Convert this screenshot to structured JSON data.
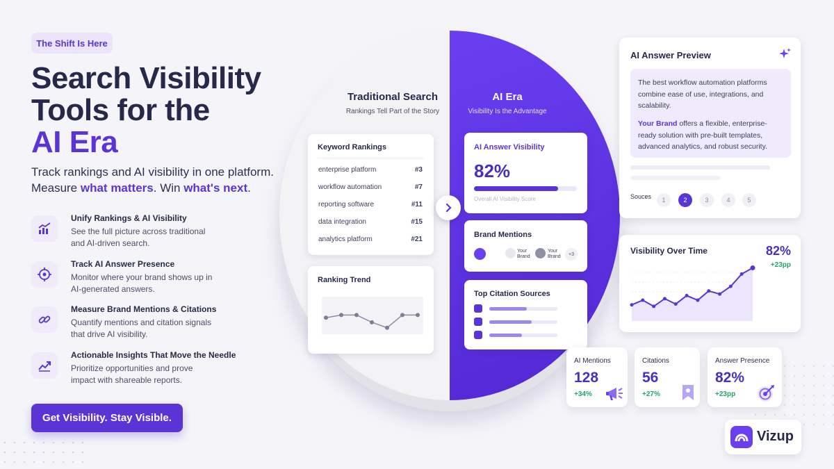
{
  "badge": "The Shift Is Here",
  "headline": {
    "line1": "Search Visibility",
    "line2": "Tools for the",
    "line3": "AI Era"
  },
  "subhead": {
    "line1": "Track rankings and AI visibility in one platform.",
    "pre": "Measure ",
    "em1": "what matters",
    "mid": ". Win ",
    "em2": "what's next",
    "post": "."
  },
  "features": [
    {
      "title": "Unify Rankings & AI Visibility",
      "desc": "See the full picture across traditional and AI-driven search.",
      "icon": "bar-chart-icon"
    },
    {
      "title": "Track AI Answer Presence",
      "desc": "Monitor where your brand shows up in AI-generated answers.",
      "icon": "target-icon"
    },
    {
      "title": "Measure Brand Mentions & Citations",
      "desc": "Quantify mentions and citation signals that drive AI visibility.",
      "icon": "link-icon"
    },
    {
      "title": "Actionable Insights That Move the Needle",
      "desc": "Prioritize opportunities and prove impact with shareable reports.",
      "icon": "trend-up-icon"
    }
  ],
  "cta": "Get Visibility. Stay Visible.",
  "traditional": {
    "title": "Traditional Search",
    "subtitle": "Rankings Tell Part of the Story",
    "keyword_card_title": "Keyword Rankings",
    "keywords": [
      {
        "term": "enterprise platform",
        "rank": "#3"
      },
      {
        "term": "workflow automation",
        "rank": "#7"
      },
      {
        "term": "reporting software",
        "rank": "#11"
      },
      {
        "term": "data integration",
        "rank": "#15"
      },
      {
        "term": "analytics platform",
        "rank": "#21"
      }
    ],
    "trend_title": "Ranking Trend",
    "trend_points": [
      4,
      3.4,
      3.4,
      5,
      6.2,
      3.4,
      3.4
    ]
  },
  "ai": {
    "title": "AI Era",
    "subtitle": "Visibility Is the Advantage",
    "visibility_title": "AI Answer Visibility",
    "visibility_value": "82%",
    "visibility_fraction": 0.82,
    "visibility_label": "Overall AI Visibility Score",
    "mentions_title": "Brand Mentions",
    "mention_labels": [
      "Your Brand",
      "Your Brand"
    ],
    "mention_more": "+3",
    "citations_title": "Top Citation Sources",
    "citation_levels": [
      0.55,
      0.62,
      0.48
    ]
  },
  "preview": {
    "title": "AI Answer Preview",
    "text1": "The best workflow automation platforms combine ease of use, integrations, and scalability.",
    "brand": "Your Brand",
    "text2": " offers a flexible, enterprise-ready solution with pre-built templates, advanced analytics, and robust security.",
    "sources_label": "Souces",
    "sources": [
      "1",
      "2",
      "3",
      "4",
      "5"
    ],
    "active_source": "2"
  },
  "visibility_over_time": {
    "title": "Visibility Over Time",
    "value": "82%",
    "delta": "+23pp",
    "series": [
      32,
      38,
      30,
      40,
      33,
      44,
      38,
      50,
      46,
      56,
      72,
      80
    ]
  },
  "metrics": [
    {
      "label": "AI Mentions",
      "value": "128",
      "delta": "+34%",
      "icon": "megaphone-icon"
    },
    {
      "label": "Citations",
      "value": "56",
      "delta": "+27%",
      "icon": "bookmark-icon"
    },
    {
      "label": "Answer Presence",
      "value": "82%",
      "delta": "+23pp",
      "icon": "target-icon"
    }
  ],
  "brand": "Vizup",
  "colors": {
    "accent": "#5b34d6",
    "positive": "#22a36b"
  }
}
